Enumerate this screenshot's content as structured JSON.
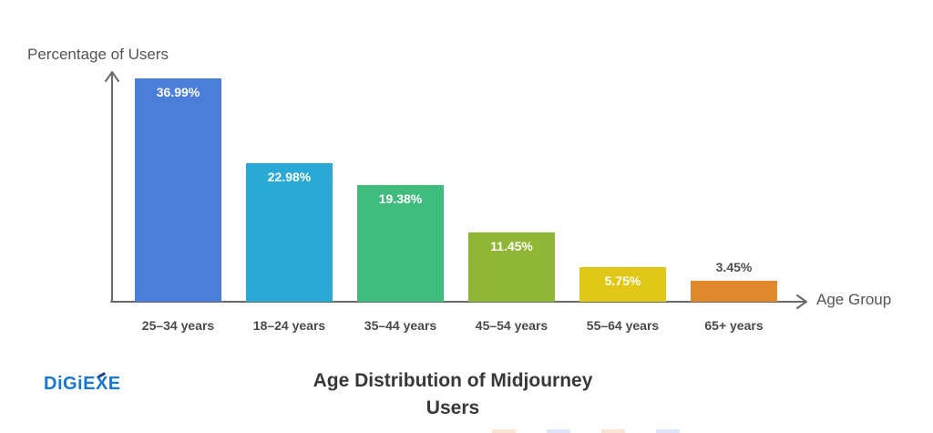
{
  "branding": {
    "logo_text": "DiGiEXE",
    "logo_color": "#1777d2"
  },
  "chart_data": {
    "type": "bar",
    "title": "Age Distribution of Midjourney Users",
    "xlabel": "Age Group",
    "ylabel": "Percentage of Users",
    "categories": [
      "25–34 years",
      "18–24 years",
      "35–44 years",
      "45–54 years",
      "55–64 years",
      "65+ years"
    ],
    "values": [
      36.99,
      22.98,
      19.38,
      11.45,
      5.75,
      3.45
    ],
    "value_labels": [
      "36.99%",
      "22.98%",
      "19.38%",
      "11.45%",
      "5.75%",
      "3.45%"
    ],
    "bar_colors": [
      "#4a7ed8",
      "#28a9d6",
      "#40bc7d",
      "#8fb735",
      "#e0c718",
      "#e0892c"
    ],
    "value_label_inside_color": "#ffffff",
    "value_label_outside_color": "#4f4f4f",
    "axis_color": "#6a6a6a",
    "ylim": [
      0,
      40
    ],
    "grid": false,
    "legend": false
  }
}
